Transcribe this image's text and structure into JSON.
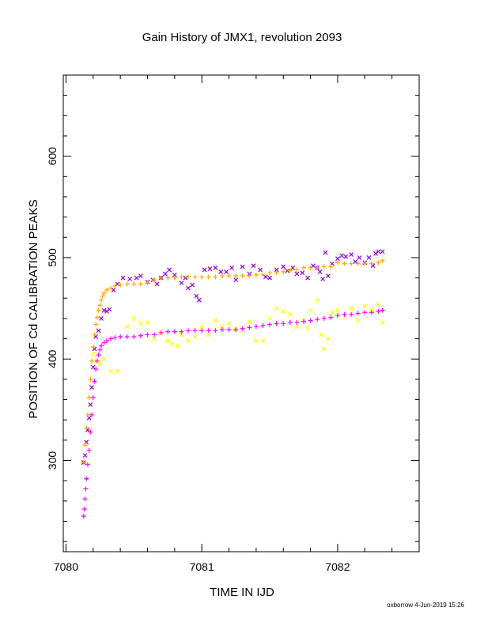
{
  "chart_data": {
    "type": "scatter",
    "title": "Gain History of JMX1, revolution 2093",
    "xlabel": "TIME IN IJD",
    "ylabel": "POSITION OF Cd CALIBRATION PEAKS",
    "xlim": [
      7079.98,
      7082.6
    ],
    "ylim": [
      210,
      680
    ],
    "x_ticks": [
      7080,
      7081,
      7082
    ],
    "y_ticks": [
      300,
      400,
      500,
      600
    ],
    "grid": false,
    "legend": "none",
    "footer": "oxborrow  4-Jun-2019 15:26",
    "series": [
      {
        "color": "#9400d3",
        "marker": "x",
        "points": [
          [
            7080.13,
            298
          ],
          [
            7080.14,
            305
          ],
          [
            7080.15,
            318
          ],
          [
            7080.16,
            330
          ],
          [
            7080.17,
            342
          ],
          [
            7080.18,
            355
          ],
          [
            7080.19,
            372
          ],
          [
            7080.2,
            392
          ],
          [
            7080.21,
            410
          ],
          [
            7080.22,
            422
          ],
          [
            7080.24,
            428
          ],
          [
            7080.26,
            440
          ],
          [
            7080.28,
            448
          ],
          [
            7080.3,
            447
          ],
          [
            7080.32,
            449
          ],
          [
            7080.35,
            468
          ],
          [
            7080.38,
            474
          ],
          [
            7080.42,
            480
          ],
          [
            7080.47,
            479
          ],
          [
            7080.52,
            480
          ],
          [
            7080.55,
            482
          ],
          [
            7080.6,
            476
          ],
          [
            7080.64,
            478
          ],
          [
            7080.67,
            474
          ],
          [
            7080.7,
            480
          ],
          [
            7080.73,
            484
          ],
          [
            7080.76,
            488
          ],
          [
            7080.8,
            483
          ],
          [
            7080.85,
            475
          ],
          [
            7080.88,
            480
          ],
          [
            7080.9,
            470
          ],
          [
            7080.93,
            473
          ],
          [
            7080.96,
            462
          ],
          [
            7080.98,
            458
          ],
          [
            7081.02,
            488
          ],
          [
            7081.06,
            489
          ],
          [
            7081.1,
            490
          ],
          [
            7081.14,
            486
          ],
          [
            7081.18,
            486
          ],
          [
            7081.22,
            490
          ],
          [
            7081.25,
            478
          ],
          [
            7081.3,
            491
          ],
          [
            7081.35,
            484
          ],
          [
            7081.38,
            492
          ],
          [
            7081.43,
            488
          ],
          [
            7081.47,
            481
          ],
          [
            7081.5,
            480
          ],
          [
            7081.55,
            488
          ],
          [
            7081.6,
            491
          ],
          [
            7081.63,
            487
          ],
          [
            7081.67,
            490
          ],
          [
            7081.7,
            484
          ],
          [
            7081.74,
            485
          ],
          [
            7081.78,
            480
          ],
          [
            7081.82,
            492
          ],
          [
            7081.85,
            490
          ],
          [
            7081.87,
            486
          ],
          [
            7081.89,
            479
          ],
          [
            7081.91,
            505
          ],
          [
            7081.93,
            482
          ],
          [
            7081.96,
            494
          ],
          [
            7082.0,
            499
          ],
          [
            7082.03,
            502
          ],
          [
            7082.06,
            501
          ],
          [
            7082.1,
            503
          ],
          [
            7082.13,
            496
          ],
          [
            7082.16,
            500
          ],
          [
            7082.2,
            495
          ],
          [
            7082.23,
            500
          ],
          [
            7082.26,
            492
          ],
          [
            7082.28,
            504
          ],
          [
            7082.3,
            506
          ],
          [
            7082.33,
            506
          ]
        ]
      },
      {
        "color": "#ffa500",
        "marker": "+",
        "points": [
          [
            7080.13,
            298
          ],
          [
            7080.14,
            315
          ],
          [
            7080.15,
            332
          ],
          [
            7080.16,
            345
          ],
          [
            7080.17,
            362
          ],
          [
            7080.18,
            380
          ],
          [
            7080.19,
            398
          ],
          [
            7080.2,
            412
          ],
          [
            7080.21,
            424
          ],
          [
            7080.22,
            434
          ],
          [
            7080.23,
            441
          ],
          [
            7080.24,
            448
          ],
          [
            7080.25,
            453
          ],
          [
            7080.26,
            458
          ],
          [
            7080.27,
            462
          ],
          [
            7080.28,
            465
          ],
          [
            7080.3,
            468
          ],
          [
            7080.33,
            470
          ],
          [
            7080.36,
            472
          ],
          [
            7080.4,
            473
          ],
          [
            7080.45,
            474
          ],
          [
            7080.5,
            474
          ],
          [
            7080.55,
            474
          ],
          [
            7080.6,
            475
          ],
          [
            7080.65,
            478
          ],
          [
            7080.7,
            480
          ],
          [
            7080.75,
            480
          ],
          [
            7080.8,
            480
          ],
          [
            7080.85,
            481
          ],
          [
            7080.9,
            481
          ],
          [
            7080.95,
            481
          ],
          [
            7081.0,
            481
          ],
          [
            7081.05,
            481
          ],
          [
            7081.1,
            481
          ],
          [
            7081.15,
            482
          ],
          [
            7081.2,
            482
          ],
          [
            7081.25,
            482
          ],
          [
            7081.3,
            482
          ],
          [
            7081.35,
            482
          ],
          [
            7081.4,
            483
          ],
          [
            7081.45,
            483
          ],
          [
            7081.5,
            485
          ],
          [
            7081.55,
            485
          ],
          [
            7081.6,
            486
          ],
          [
            7081.65,
            487
          ],
          [
            7081.7,
            488
          ],
          [
            7081.75,
            490
          ],
          [
            7081.8,
            490
          ],
          [
            7081.85,
            490
          ],
          [
            7081.9,
            491
          ],
          [
            7081.95,
            491
          ],
          [
            7082.0,
            495
          ],
          [
            7082.05,
            494
          ],
          [
            7082.1,
            494
          ],
          [
            7082.15,
            494
          ],
          [
            7082.2,
            494
          ],
          [
            7082.25,
            494
          ],
          [
            7082.3,
            495
          ],
          [
            7082.33,
            497
          ]
        ]
      },
      {
        "color": "#ffff00",
        "marker": "x",
        "points": [
          [
            7080.2,
            405
          ],
          [
            7080.22,
            398
          ],
          [
            7080.25,
            395
          ],
          [
            7080.28,
            400
          ],
          [
            7080.33,
            388
          ],
          [
            7080.38,
            388
          ],
          [
            7080.45,
            432
          ],
          [
            7080.5,
            440
          ],
          [
            7080.55,
            435
          ],
          [
            7080.6,
            436
          ],
          [
            7080.65,
            420
          ],
          [
            7080.7,
            425
          ],
          [
            7080.75,
            418
          ],
          [
            7080.78,
            415
          ],
          [
            7080.82,
            413
          ],
          [
            7080.85,
            424
          ],
          [
            7080.9,
            418
          ],
          [
            7080.95,
            422
          ],
          [
            7081.0,
            432
          ],
          [
            7081.05,
            424
          ],
          [
            7081.1,
            438
          ],
          [
            7081.15,
            432
          ],
          [
            7081.2,
            435
          ],
          [
            7081.25,
            429
          ],
          [
            7081.3,
            428
          ],
          [
            7081.35,
            437
          ],
          [
            7081.4,
            418
          ],
          [
            7081.45,
            418
          ],
          [
            7081.5,
            440
          ],
          [
            7081.55,
            450
          ],
          [
            7081.6,
            447
          ],
          [
            7081.65,
            444
          ],
          [
            7081.7,
            432
          ],
          [
            7081.75,
            438
          ],
          [
            7081.78,
            430
          ],
          [
            7081.8,
            448
          ],
          [
            7081.85,
            458
          ],
          [
            7081.88,
            424
          ],
          [
            7081.9,
            410
          ],
          [
            7081.93,
            420
          ],
          [
            7081.96,
            446
          ],
          [
            7082.0,
            448
          ],
          [
            7082.05,
            441
          ],
          [
            7082.1,
            450
          ],
          [
            7082.15,
            438
          ],
          [
            7082.2,
            452
          ],
          [
            7082.25,
            449
          ],
          [
            7082.3,
            454
          ],
          [
            7082.33,
            436
          ]
        ]
      },
      {
        "color": "#ff00ff",
        "marker": "+",
        "points": [
          [
            7080.13,
            245
          ],
          [
            7080.135,
            252
          ],
          [
            7080.14,
            262
          ],
          [
            7080.145,
            272
          ],
          [
            7080.15,
            282
          ],
          [
            7080.16,
            296
          ],
          [
            7080.17,
            310
          ],
          [
            7080.18,
            328
          ],
          [
            7080.19,
            345
          ],
          [
            7080.2,
            362
          ],
          [
            7080.21,
            378
          ],
          [
            7080.22,
            390
          ],
          [
            7080.23,
            398
          ],
          [
            7080.24,
            404
          ],
          [
            7080.25,
            409
          ],
          [
            7080.26,
            413
          ],
          [
            7080.28,
            416
          ],
          [
            7080.3,
            418
          ],
          [
            7080.33,
            420
          ],
          [
            7080.36,
            421
          ],
          [
            7080.4,
            422
          ],
          [
            7080.45,
            422
          ],
          [
            7080.5,
            422
          ],
          [
            7080.55,
            423
          ],
          [
            7080.6,
            424
          ],
          [
            7080.65,
            424
          ],
          [
            7080.7,
            426
          ],
          [
            7080.75,
            427
          ],
          [
            7080.8,
            427
          ],
          [
            7080.85,
            427
          ],
          [
            7080.9,
            428
          ],
          [
            7080.95,
            428
          ],
          [
            7081.0,
            428
          ],
          [
            7081.05,
            428
          ],
          [
            7081.1,
            428
          ],
          [
            7081.15,
            429
          ],
          [
            7081.2,
            429
          ],
          [
            7081.25,
            429
          ],
          [
            7081.3,
            430
          ],
          [
            7081.35,
            431
          ],
          [
            7081.4,
            432
          ],
          [
            7081.45,
            433
          ],
          [
            7081.5,
            434
          ],
          [
            7081.55,
            435
          ],
          [
            7081.6,
            435
          ],
          [
            7081.65,
            436
          ],
          [
            7081.7,
            436
          ],
          [
            7081.75,
            437
          ],
          [
            7081.8,
            438
          ],
          [
            7081.85,
            439
          ],
          [
            7081.9,
            440
          ],
          [
            7081.95,
            441
          ],
          [
            7082.0,
            443
          ],
          [
            7082.05,
            444
          ],
          [
            7082.1,
            444
          ],
          [
            7082.15,
            445
          ],
          [
            7082.2,
            446
          ],
          [
            7082.25,
            446
          ],
          [
            7082.3,
            447
          ],
          [
            7082.33,
            448
          ]
        ]
      }
    ]
  }
}
